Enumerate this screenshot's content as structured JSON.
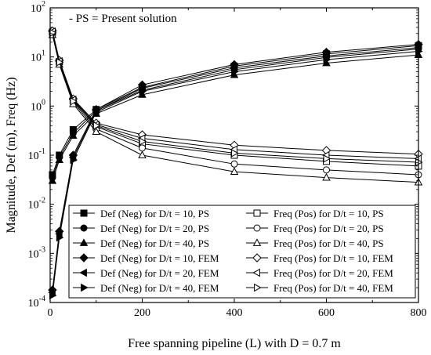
{
  "chart_data": {
    "type": "line",
    "title": "",
    "annotation": "- PS = Present solution",
    "xlabel": "Free spanning pipeline (L) with D = 0.7 m",
    "ylabel": "Magnitude, Def (m), Freq (Hz)",
    "x_scale": "linear",
    "y_scale": "log",
    "xlim": [
      0,
      800
    ],
    "ylim": [
      0.0001,
      100
    ],
    "x_ticks": [
      0,
      200,
      400,
      600,
      800
    ],
    "x_tick_labels": [
      "0",
      "200",
      "400",
      "600",
      "800"
    ],
    "y_ticks": [
      0.0001,
      0.001,
      0.01,
      0.1,
      1,
      10,
      100
    ],
    "y_tick_labels": [
      {
        "base": "10",
        "exp": "-4"
      },
      {
        "base": "10",
        "exp": "-3"
      },
      {
        "base": "10",
        "exp": "-2"
      },
      {
        "base": "10",
        "exp": "-1"
      },
      {
        "base": "10",
        "exp": "0"
      },
      {
        "base": "10",
        "exp": "1"
      },
      {
        "base": "10",
        "exp": "2"
      }
    ],
    "legend_position": "bottom",
    "line_color": "#000000",
    "x": [
      5,
      20,
      50,
      100,
      200,
      400,
      600,
      800
    ],
    "series": [
      {
        "name": "Def (Neg) for D/t = 10, PS",
        "marker": "square-filled",
        "values": [
          0.04,
          0.1,
          0.33,
          0.85,
          2.4,
          6.5,
          11.5,
          17
        ]
      },
      {
        "name": "Def (Neg) for D/t = 20, PS",
        "marker": "circle-filled",
        "values": [
          0.035,
          0.09,
          0.28,
          0.8,
          2.1,
          5.5,
          9.8,
          14.5
        ]
      },
      {
        "name": "Def (Neg) for D/t = 40, PS",
        "marker": "triangle-up-filled",
        "values": [
          0.03,
          0.08,
          0.25,
          0.7,
          1.7,
          4.3,
          7.5,
          11
        ]
      },
      {
        "name": "Def (Neg) for D/t = 10, FEM",
        "marker": "diamond-filled",
        "values": [
          0.00018,
          0.0028,
          0.1,
          0.85,
          2.7,
          7.0,
          12.5,
          18
        ]
      },
      {
        "name": "Def (Neg) for D/t = 20, FEM",
        "marker": "triangle-left-filled",
        "values": [
          0.00016,
          0.0025,
          0.09,
          0.8,
          2.3,
          6.0,
          10.5,
          15.5
        ]
      },
      {
        "name": "Def (Neg) for D/t = 40, FEM",
        "marker": "triangle-right-filled",
        "values": [
          0.00014,
          0.0021,
          0.08,
          0.75,
          2.0,
          5.0,
          8.8,
          13
        ]
      },
      {
        "name": "Freq (Pos) for D/t = 10, PS",
        "marker": "square-open",
        "values": [
          32,
          8,
          1.3,
          0.38,
          0.17,
          0.1,
          0.075,
          0.06
        ]
      },
      {
        "name": "Freq (Pos) for D/t = 20, PS",
        "marker": "circle-open",
        "values": [
          30,
          7.5,
          1.2,
          0.34,
          0.14,
          0.066,
          0.05,
          0.04
        ]
      },
      {
        "name": "Freq (Pos) for D/t = 40, PS",
        "marker": "triangle-up-open",
        "values": [
          28,
          7,
          1.1,
          0.3,
          0.1,
          0.046,
          0.035,
          0.028
        ]
      },
      {
        "name": "Freq (Pos) for D/t = 10, FEM",
        "marker": "diamond-open",
        "values": [
          34,
          8.5,
          1.4,
          0.45,
          0.26,
          0.16,
          0.125,
          0.105
        ]
      },
      {
        "name": "Freq (Pos) for D/t = 20, FEM",
        "marker": "triangle-left-open",
        "values": [
          33,
          8.2,
          1.35,
          0.42,
          0.22,
          0.13,
          0.1,
          0.085
        ]
      },
      {
        "name": "Freq (Pos) for D/t = 40, FEM",
        "marker": "triangle-right-open",
        "values": [
          31,
          7.8,
          1.25,
          0.4,
          0.19,
          0.11,
          0.085,
          0.072
        ]
      }
    ]
  }
}
